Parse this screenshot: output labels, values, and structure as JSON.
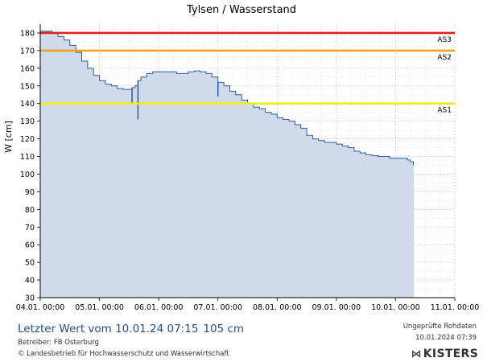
{
  "header": {
    "title": "Tylsen / Wasserstand"
  },
  "footer": {
    "last_value_label": "Letzter Wert vom 10.01.24 07:15",
    "last_value_reading": "105 cm",
    "operator": "Betreiber: FB Osterburg",
    "copyright": "© Landesbetrieb für Hochwasserschutz und Wasserwirtschaft",
    "status_line1": "Ungeprüfte Rohdaten",
    "status_line2": "10.01.2024 07:39",
    "logo_text": "KISTERS",
    "logo_icon": "kisters-k-icon"
  },
  "chart_data": {
    "type": "area",
    "title": "Tylsen / Wasserstand",
    "ylabel": "W [cm]",
    "xlabel": "",
    "xlim": [
      0,
      7
    ],
    "ylim": [
      30,
      185
    ],
    "grid": true,
    "x_ticks": [
      {
        "value": 0,
        "label": "04.01. 00:00"
      },
      {
        "value": 1,
        "label": "05.01. 00:00"
      },
      {
        "value": 2,
        "label": "06.01. 00:00"
      },
      {
        "value": 3,
        "label": "07.01. 00:00"
      },
      {
        "value": 4,
        "label": "08.01. 00:00"
      },
      {
        "value": 5,
        "label": "09.01. 00:00"
      },
      {
        "value": 6,
        "label": "10.01. 00:00"
      },
      {
        "value": 7,
        "label": "11.01. 00:00"
      }
    ],
    "y_ticks": [
      30,
      40,
      50,
      60,
      70,
      80,
      90,
      100,
      110,
      120,
      130,
      140,
      150,
      160,
      170,
      180
    ],
    "thresholds": [
      {
        "name": "AS3",
        "value": 180,
        "color": "#e02020"
      },
      {
        "name": "AS2",
        "value": 170,
        "color": "#f5a020"
      },
      {
        "name": "AS1",
        "value": 140,
        "color": "#f2ec1a"
      }
    ],
    "series": [
      {
        "color": "#2f5a9e",
        "fill": "#cfdbea",
        "x": [
          0.0,
          0.1,
          0.2,
          0.3,
          0.4,
          0.5,
          0.6,
          0.7,
          0.8,
          0.9,
          1.0,
          1.1,
          1.2,
          1.3,
          1.4,
          1.5,
          1.55,
          1.6,
          1.65,
          1.7,
          1.8,
          1.9,
          2.0,
          2.1,
          2.2,
          2.3,
          2.4,
          2.5,
          2.6,
          2.7,
          2.8,
          2.9,
          3.0,
          3.1,
          3.2,
          3.3,
          3.4,
          3.5,
          3.6,
          3.7,
          3.8,
          3.9,
          4.0,
          4.1,
          4.2,
          4.3,
          4.4,
          4.5,
          4.6,
          4.7,
          4.8,
          4.9,
          5.0,
          5.1,
          5.2,
          5.3,
          5.4,
          5.5,
          5.6,
          5.7,
          5.8,
          5.9,
          6.0,
          6.1,
          6.2,
          6.25,
          6.3
        ],
        "values": [
          181,
          181,
          180,
          178,
          176,
          173,
          169,
          164,
          160,
          156,
          153,
          151,
          150,
          148.5,
          148,
          148,
          149,
          150,
          153,
          155,
          157,
          158,
          158,
          158,
          158,
          157,
          157,
          158,
          158.5,
          158,
          157,
          155,
          152,
          150,
          147,
          145,
          142,
          140,
          138,
          137,
          135,
          134,
          132,
          131,
          130,
          128,
          126,
          122,
          120,
          119,
          118,
          118,
          117,
          116,
          115,
          113,
          112,
          111,
          110.5,
          110,
          110,
          109,
          109,
          109,
          108,
          107,
          105
        ]
      }
    ],
    "spikes": [
      {
        "x": 1.55,
        "low": 140
      },
      {
        "x": 1.65,
        "low": 131
      },
      {
        "x": 3.0,
        "low": 144
      }
    ]
  }
}
